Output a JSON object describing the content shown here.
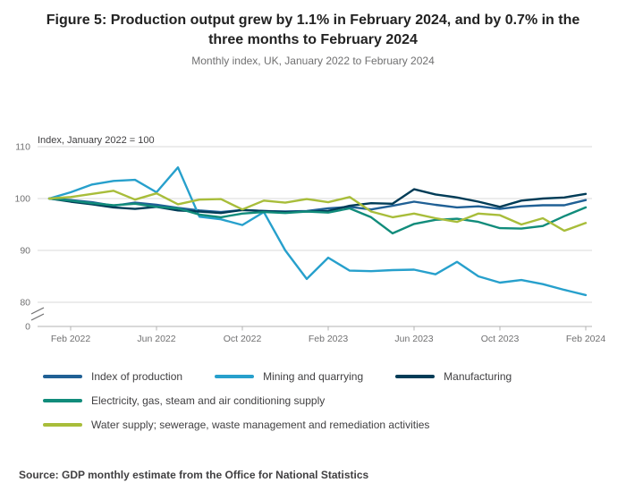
{
  "title": "Figure 5: Production output grew by 1.1% in February 2024, and by 0.7% in the three months to February 2024",
  "subtitle": "Monthly index, UK, January 2022 to February 2024",
  "source": "Source: GDP monthly estimate from the Office for National Statistics",
  "chart_data": {
    "type": "line",
    "axis_label": "Index, January 2022 = 100",
    "xlabel": "",
    "ylabel": "Index, January 2022 = 100",
    "grid": true,
    "legend_position": "bottom",
    "ylim": [
      80,
      110
    ],
    "y_ticks": [
      110,
      100,
      90,
      80,
      0
    ],
    "x_tick_labels": [
      "Feb 2022",
      "Jun 2022",
      "Oct 2022",
      "Feb 2023",
      "Jun 2023",
      "Oct 2023",
      "Feb 2024"
    ],
    "x_tick_indices": [
      1,
      5,
      9,
      13,
      17,
      21,
      25
    ],
    "x": [
      "Jan 2022",
      "Feb 2022",
      "Mar 2022",
      "Apr 2022",
      "May 2022",
      "Jun 2022",
      "Jul 2022",
      "Aug 2022",
      "Sep 2022",
      "Oct 2022",
      "Nov 2022",
      "Dec 2022",
      "Jan 2023",
      "Feb 2023",
      "Mar 2023",
      "Apr 2023",
      "May 2023",
      "Jun 2023",
      "Jul 2023",
      "Aug 2023",
      "Sep 2023",
      "Oct 2023",
      "Nov 2023",
      "Dec 2023",
      "Jan 2024",
      "Feb 2024"
    ],
    "series": [
      {
        "name": "Index of production",
        "color": "#206095",
        "values": [
          100,
          99.7,
          99.3,
          98.6,
          99.2,
          98.8,
          98.2,
          97.7,
          97.4,
          97.8,
          97.6,
          97.5,
          97.6,
          98.1,
          98.4,
          97.9,
          98.6,
          99.4,
          98.8,
          98.3,
          98.5,
          98.0,
          98.5,
          98.7,
          98.7,
          99.7
        ]
      },
      {
        "name": "Mining and quarrying",
        "color": "#27a0cc",
        "values": [
          100,
          101.2,
          102.7,
          103.4,
          103.6,
          101.2,
          106.0,
          96.5,
          96.0,
          94.9,
          97.4,
          90.0,
          84.5,
          88.6,
          86.1,
          86.0,
          86.2,
          86.3,
          85.4,
          87.8,
          85.0,
          83.8,
          84.3,
          83.5,
          82.4,
          81.4
        ]
      },
      {
        "name": "Manufacturing",
        "color": "#003c57",
        "values": [
          100,
          99.4,
          98.9,
          98.3,
          98.0,
          98.4,
          97.7,
          97.5,
          97.2,
          97.8,
          97.6,
          97.4,
          97.5,
          97.6,
          98.6,
          99.1,
          99.0,
          101.8,
          100.8,
          100.2,
          99.4,
          98.4,
          99.6,
          100.0,
          100.2,
          100.9
        ]
      },
      {
        "name": "Electricity, gas, steam and air conditioning supply",
        "color": "#118c7b",
        "values": [
          100,
          99.6,
          99.1,
          98.7,
          99.0,
          98.4,
          98.1,
          96.9,
          96.4,
          97.1,
          97.4,
          97.2,
          97.5,
          97.3,
          98.1,
          96.4,
          93.3,
          95.1,
          95.9,
          96.1,
          95.5,
          94.3,
          94.2,
          94.7,
          96.6,
          98.3
        ]
      },
      {
        "name": "Water supply; sewerage, waste management and remediation activities",
        "color": "#a8bd3a",
        "values": [
          100,
          100.3,
          100.9,
          101.5,
          99.8,
          101.0,
          98.9,
          99.8,
          99.9,
          97.9,
          99.6,
          99.2,
          99.9,
          99.3,
          100.3,
          97.5,
          96.4,
          97.1,
          96.2,
          95.5,
          97.1,
          96.8,
          95.0,
          96.2,
          93.8,
          95.3
        ]
      }
    ],
    "colors": {
      "grid": "#d9d9d9",
      "axis": "#b3b3b3",
      "tick_text": "#707071",
      "axis_label_text": "#414042"
    }
  }
}
